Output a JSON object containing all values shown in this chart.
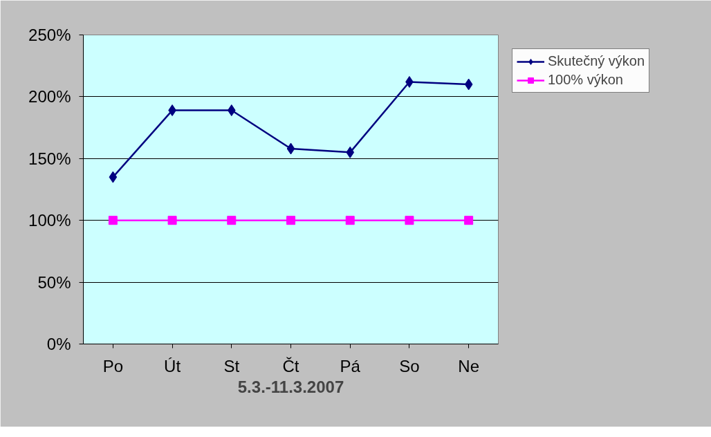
{
  "chart_data": {
    "type": "line",
    "xlabel": "5.3.-11.3.2007",
    "categories": [
      "Po",
      "Út",
      "St",
      "Čt",
      "Pá",
      "So",
      "Ne"
    ],
    "series": [
      {
        "name": "Skutečný výkon",
        "color": "#000080",
        "marker": "diamond",
        "values": [
          135,
          189,
          189,
          158,
          155,
          212,
          210
        ]
      },
      {
        "name": "100% výkon",
        "color": "#ff00ff",
        "marker": "square",
        "values": [
          100,
          100,
          100,
          100,
          100,
          100,
          100
        ]
      }
    ],
    "ylim": [
      0,
      250
    ],
    "yticks": [
      {
        "value": 0,
        "label": "0%"
      },
      {
        "value": 50,
        "label": "50%"
      },
      {
        "value": 100,
        "label": "100%"
      },
      {
        "value": 150,
        "label": "150%"
      },
      {
        "value": 200,
        "label": "200%"
      },
      {
        "value": 250,
        "label": "250%"
      }
    ],
    "grid": "y",
    "legend": "right",
    "line_style": "solid"
  }
}
